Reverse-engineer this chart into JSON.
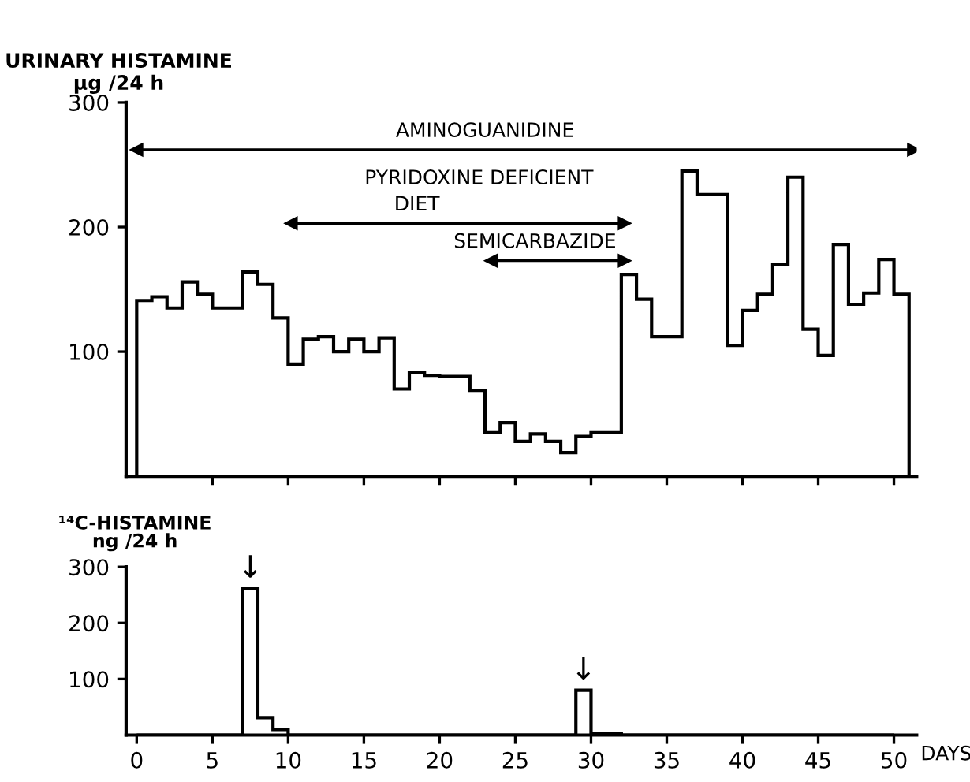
{
  "chart_data": [
    {
      "type": "histogram",
      "ylabel": "URINARY HISTAMINE\nμg /24 h",
      "xlim": [
        -0.7,
        51.5
      ],
      "ylim": [
        0,
        300
      ],
      "yticks": [
        100,
        200,
        300
      ],
      "xticks": [
        {
          "value": 5,
          "label": null
        },
        {
          "value": 10,
          "label": null
        },
        {
          "value": 15,
          "label": null
        },
        {
          "value": 20,
          "label": null
        },
        {
          "value": 25,
          "label": null
        },
        {
          "value": 30,
          "label": null
        },
        {
          "value": 35,
          "label": null
        },
        {
          "value": 40,
          "label": null
        },
        {
          "value": 45,
          "label": null
        },
        {
          "value": 50,
          "label": null
        }
      ],
      "tick_labels": "y",
      "color": "#000000",
      "bins": [
        0,
        1,
        2,
        3,
        4,
        5,
        6,
        7,
        8,
        9,
        10,
        11,
        12,
        13,
        14,
        15,
        16,
        17,
        18,
        19,
        20,
        21,
        22,
        23,
        24,
        25,
        26,
        27,
        28,
        29,
        30,
        31,
        32,
        33,
        34,
        35,
        36,
        37,
        38,
        39,
        40,
        41,
        42,
        43,
        44,
        45,
        46,
        47,
        48,
        49,
        50,
        51
      ],
      "values": [
        141,
        144,
        135,
        156,
        146,
        135,
        135,
        164,
        154,
        127,
        90,
        110,
        112,
        100,
        110,
        100,
        111,
        70,
        83,
        81,
        80,
        80,
        69,
        35,
        43,
        28,
        34,
        28,
        19,
        32,
        35,
        35,
        162,
        142,
        112,
        112,
        245,
        226,
        226,
        105,
        133,
        146,
        170,
        240,
        118,
        97,
        186,
        138,
        147,
        174,
        146
      ],
      "series": [
        {
          "type": "line",
          "color": "#000000",
          "marker": "triangle",
          "x": [
            0,
            51.3
          ],
          "values": [
            262,
            262
          ]
        },
        {
          "type": "line",
          "color": "#000000",
          "marker": "triangle",
          "x": [
            10.2,
            32.2
          ],
          "values": [
            203,
            203
          ]
        },
        {
          "type": "line",
          "color": "#000000",
          "marker": "triangle",
          "x": [
            23.4,
            32.2
          ],
          "values": [
            173,
            173
          ]
        }
      ],
      "annotations": [
        {
          "text": "AMINOGUANIDINE",
          "x": 23,
          "y": 262
        },
        {
          "text": "PYRIDOXINE DEFICIENT",
          "x": 22.6,
          "y": 203
        },
        {
          "text": "DIET",
          "x": 18.5,
          "y": 203
        },
        {
          "text": "SEMICARBAZIDE",
          "x": 26.3,
          "y": 173
        }
      ]
    },
    {
      "type": "histogram",
      "ylabel": "¹⁴C-HISTAMINE\nng /24 h",
      "xlabel": "DAYS",
      "xlim": [
        -0.7,
        51.5
      ],
      "ylim": [
        0,
        300
      ],
      "yticks": [
        100,
        200,
        300
      ],
      "xticks": [
        0,
        5,
        10,
        15,
        20,
        25,
        30,
        35,
        40,
        45,
        50
      ],
      "color": "#000000",
      "bins": [
        0,
        1,
        2,
        3,
        4,
        5,
        6,
        7,
        8,
        9,
        10,
        11,
        12,
        13,
        14,
        15,
        16,
        17,
        18,
        19,
        20,
        21,
        22,
        23,
        24,
        25,
        26,
        27,
        28,
        29,
        30,
        31,
        32,
        33,
        34,
        35,
        36,
        37,
        38,
        39,
        40,
        41,
        42,
        43,
        44,
        45,
        46,
        47,
        48,
        49,
        50
      ],
      "values": [
        0,
        0,
        0,
        0,
        0,
        0,
        0,
        262,
        31,
        10,
        0,
        0,
        0,
        0,
        0,
        0,
        0,
        0,
        0,
        0,
        0,
        0,
        0,
        0,
        0,
        0,
        0,
        0,
        0,
        80,
        3,
        3,
        0,
        0,
        0,
        0,
        0,
        0,
        0,
        0,
        0,
        0,
        0,
        0,
        0,
        0,
        0,
        0,
        0,
        0
      ],
      "annotations": [
        {
          "text": "↓",
          "x": 7.5,
          "y": 262
        },
        {
          "text": "↓",
          "x": 29.5,
          "y": 80
        }
      ]
    }
  ]
}
